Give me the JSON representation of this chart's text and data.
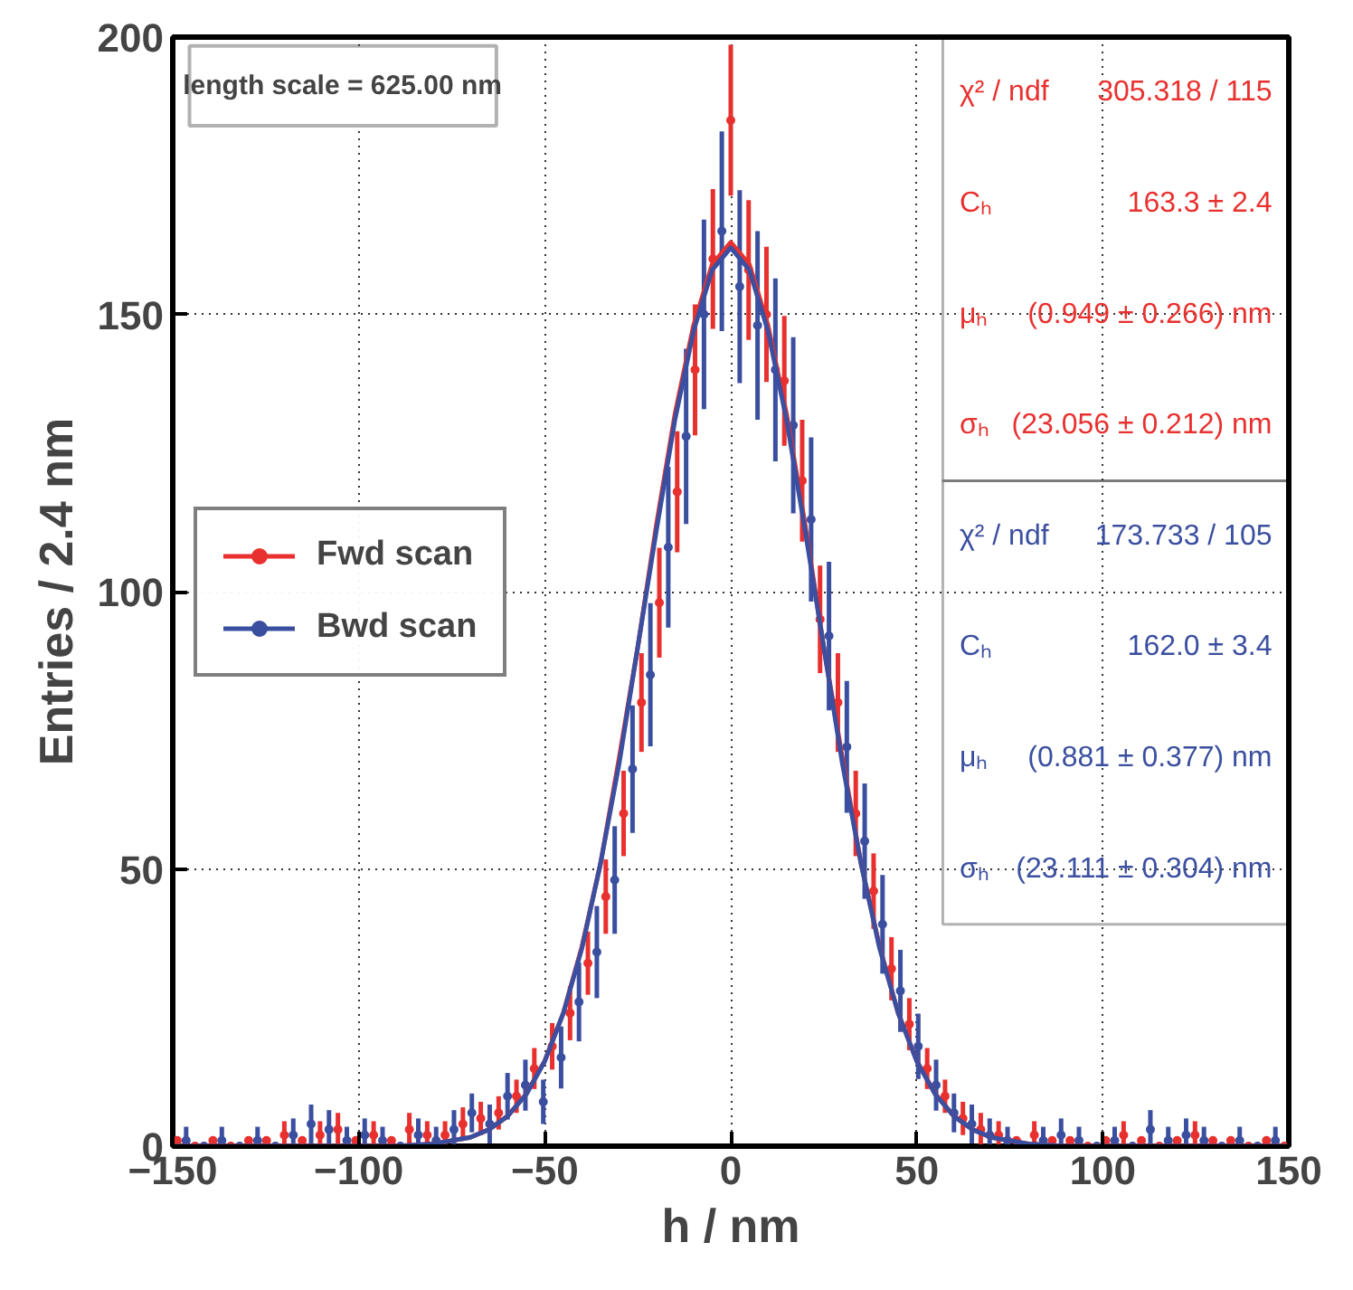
{
  "chart_data": {
    "type": "scatter",
    "xlabel": "h / nm",
    "ylabel": "Entries / 2.4 nm",
    "xlim": [
      -150,
      150
    ],
    "ylim": [
      0,
      200
    ],
    "xticks": [
      -150,
      -100,
      -50,
      0,
      50,
      100,
      150
    ],
    "yticks": [
      0,
      50,
      100,
      150,
      200
    ],
    "grid": true,
    "legend": "left",
    "marker": "circle",
    "annotations": [
      "length scale = 625.00 nm",
      "χ² / ndf",
      "305.318 / 115",
      "Cₕ",
      "163.3 ± 2.4",
      "μₕ",
      "(0.949 ± 0.266) nm",
      "σₕ",
      "(23.056 ± 0.212) nm",
      "χ² / ndf",
      "173.733 / 105",
      "Cₕ",
      "162.0 ± 3.4",
      "μₕ",
      "(0.881 ± 0.377) nm",
      "σₕ",
      "(23.111 ± 0.304) nm"
    ],
    "series": [
      {
        "name": "Fwd scan",
        "color": "#e8312f",
        "x": [
          -148.8,
          -144,
          -139.2,
          -134.4,
          -129.6,
          -124.8,
          -120,
          -115.2,
          -110.4,
          -105.6,
          -100.8,
          -96,
          -91.2,
          -86.4,
          -81.6,
          -76.8,
          -72,
          -67.2,
          -62.4,
          -57.6,
          -52.8,
          -48,
          -43.2,
          -38.4,
          -33.6,
          -28.8,
          -24,
          -19.2,
          -14.4,
          -9.6,
          -4.8,
          0,
          4.8,
          9.6,
          14.4,
          19.2,
          24,
          28.8,
          33.6,
          38.4,
          43.2,
          48,
          52.8,
          57.6,
          62.4,
          67.2,
          72,
          76.8,
          81.6,
          86.4,
          91.2,
          96,
          100.8,
          105.6,
          110.4,
          115.2,
          120,
          124.8,
          129.6,
          134.4,
          139.2,
          144,
          148.8
        ],
        "values": [
          1,
          0,
          1,
          0,
          1,
          1,
          2,
          1,
          2,
          3,
          1,
          2,
          1,
          3,
          2,
          2,
          4,
          5,
          6,
          9,
          14,
          18,
          24,
          33,
          45,
          60,
          80,
          98,
          118,
          140,
          160,
          185,
          158,
          150,
          138,
          120,
          95,
          80,
          60,
          46,
          32,
          22,
          14,
          9,
          5,
          3,
          2,
          1,
          2,
          1,
          1,
          0,
          1,
          2,
          1,
          0,
          1,
          2,
          1,
          1,
          0,
          1,
          0
        ],
        "errors": [
          null,
          null,
          null,
          null,
          null,
          null,
          2.5,
          null,
          2.5,
          3,
          null,
          2.5,
          null,
          3,
          2.5,
          2.5,
          3,
          3,
          3,
          3,
          3.7,
          4.2,
          4.9,
          5.7,
          6.7,
          7.7,
          8.9,
          9.9,
          10.9,
          11.8,
          12.6,
          13.6,
          12.6,
          12.2,
          11.7,
          11,
          9.7,
          8.9,
          7.7,
          6.8,
          5.7,
          4.7,
          3.7,
          3,
          3,
          3,
          2.5,
          null,
          2.5,
          null,
          null,
          null,
          null,
          2.5,
          null,
          null,
          null,
          2.5,
          null,
          null,
          null,
          null,
          null
        ]
      },
      {
        "name": "Bwd scan",
        "color": "#3b4fa0",
        "x": [
          -146.4,
          -141.6,
          -136.8,
          -132,
          -127.2,
          -122.4,
          -117.6,
          -112.8,
          -108,
          -103.2,
          -98.4,
          -93.6,
          -88.8,
          -84,
          -79.2,
          -74.4,
          -69.6,
          -64.8,
          -60,
          -55.2,
          -50.4,
          -45.6,
          -40.8,
          -36,
          -31.2,
          -26.4,
          -21.6,
          -16.8,
          -12,
          -7.2,
          -2.4,
          2.4,
          7.2,
          12,
          16.8,
          21.6,
          26.4,
          31.2,
          36,
          40.8,
          45.6,
          50.4,
          55.2,
          60,
          64.8,
          69.6,
          74.4,
          79.2,
          84,
          88.8,
          93.6,
          98.4,
          103.2,
          108,
          112.8,
          117.6,
          122.4,
          127.2,
          132,
          136.8,
          141.6,
          146.4
        ],
        "values": [
          1,
          0,
          1,
          0,
          1,
          0,
          2,
          4,
          3,
          1,
          2,
          1,
          0,
          2,
          1,
          3,
          6,
          4,
          9,
          11,
          8,
          16,
          26,
          35,
          48,
          68,
          85,
          108,
          128,
          150,
          165,
          155,
          148,
          140,
          130,
          113,
          92,
          72,
          55,
          40,
          28,
          18,
          11,
          6,
          4,
          2,
          1,
          null,
          1,
          2,
          1,
          0,
          1,
          0,
          3,
          1,
          2,
          1,
          0,
          1,
          0,
          1
        ],
        "errors": [
          2.5,
          null,
          2.5,
          null,
          2.5,
          null,
          3,
          3.5,
          3.5,
          2.5,
          3,
          2.5,
          null,
          3,
          2.5,
          3.5,
          3.5,
          3.5,
          4.2,
          4.6,
          4,
          5.6,
          7.1,
          8.3,
          9.7,
          11.5,
          12.9,
          14.5,
          15.8,
          17.1,
          18,
          17.4,
          17,
          16.5,
          15.9,
          14.8,
          13.4,
          11.9,
          10.4,
          8.9,
          7.4,
          5.9,
          4.6,
          3.5,
          3.5,
          3,
          2.5,
          null,
          2.5,
          3,
          2.5,
          null,
          2.5,
          null,
          3.5,
          2.5,
          3,
          2.5,
          null,
          2.5,
          null,
          2.5
        ]
      },
      {
        "color": "#e8312f",
        "type": "line",
        "marker": "none",
        "x": [
          -150,
          -100,
          -90,
          -80,
          -70,
          -65,
          -60,
          -55,
          -50,
          -45,
          -40,
          -35,
          -30,
          -25,
          -20,
          -15,
          -10,
          -5,
          0,
          5,
          10,
          15,
          20,
          25,
          30,
          35,
          40,
          45,
          50,
          55,
          60,
          65,
          70,
          80,
          90,
          100,
          150
        ],
        "values": [
          0,
          0,
          0,
          0.4,
          1.6,
          3,
          5.4,
          9.4,
          15.4,
          24,
          36,
          51,
          70,
          90,
          112,
          132,
          148,
          159,
          163,
          159,
          148,
          132,
          112,
          90,
          70,
          51,
          36,
          24,
          15.4,
          9.4,
          5.4,
          3,
          1.6,
          0.4,
          0,
          0,
          0
        ]
      },
      {
        "color": "#3b4fa0",
        "type": "line",
        "marker": "none",
        "x": [
          -150,
          -100,
          -90,
          -80,
          -70,
          -65,
          -60,
          -55,
          -50,
          -45,
          -40,
          -35,
          -30,
          -25,
          -20,
          -15,
          -10,
          -5,
          0,
          5,
          10,
          15,
          20,
          25,
          30,
          35,
          40,
          45,
          50,
          55,
          60,
          65,
          70,
          80,
          90,
          100,
          150
        ],
        "values": [
          0,
          0,
          0,
          0.4,
          1.6,
          3,
          5.4,
          9.3,
          15.3,
          24,
          35.7,
          51,
          69,
          90,
          111,
          131,
          147,
          158,
          162,
          158,
          147,
          131,
          111,
          90,
          69,
          51,
          35.7,
          24,
          15.3,
          9.3,
          5.4,
          3,
          1.6,
          0.4,
          0,
          0,
          0
        ]
      }
    ]
  }
}
